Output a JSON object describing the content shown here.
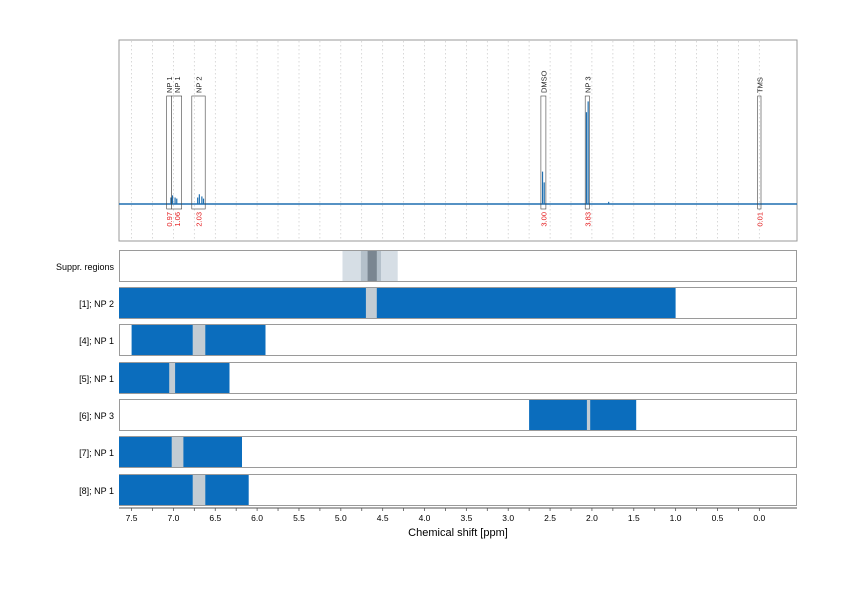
{
  "colors": {
    "spectrum": "#1f6fb0",
    "bar": "#0b6dbd",
    "gap": "#c3ccd3",
    "suppr_outer": "#d6dee5",
    "suppr_mid": "#b4c0ca",
    "suppr_inner": "#7a8691",
    "integral_text": "#e41a1c",
    "frame": "#9a9a9a",
    "grid": "#c8c8c8"
  },
  "chart_data": {
    "type": "spectrum",
    "xlabel": "Chemical shift [ppm]",
    "xlim": [
      7.65,
      -0.45
    ],
    "x_ticks": [
      7.5,
      7.0,
      6.5,
      6.0,
      5.5,
      5.0,
      4.5,
      4.0,
      3.5,
      3.0,
      2.5,
      2.0,
      1.5,
      1.0,
      0.5,
      0.0
    ],
    "x_tick_labels": [
      "7.5",
      "7.0",
      "6.5",
      "6.0",
      "5.5",
      "5.0",
      "4.5",
      "4.0",
      "3.5",
      "3.0",
      "2.5",
      "2.0",
      "1.5",
      "1.0",
      "0.5",
      "0.0"
    ],
    "grid": true,
    "peaks": [
      {
        "ppm": 7.03,
        "height": 0.06
      },
      {
        "ppm": 7.01,
        "height": 0.08
      },
      {
        "ppm": 6.98,
        "height": 0.06
      },
      {
        "ppm": 6.96,
        "height": 0.05
      },
      {
        "ppm": 6.71,
        "height": 0.06
      },
      {
        "ppm": 6.69,
        "height": 0.09
      },
      {
        "ppm": 6.66,
        "height": 0.07
      },
      {
        "ppm": 6.64,
        "height": 0.05
      },
      {
        "ppm": 2.59,
        "height": 0.3
      },
      {
        "ppm": 2.57,
        "height": 0.2
      },
      {
        "ppm": 2.065,
        "height": 0.85
      },
      {
        "ppm": 2.045,
        "height": 0.95
      },
      {
        "ppm": 1.8,
        "height": 0.02
      }
    ],
    "annotations": [
      {
        "label": "NP 1",
        "ppm_start": 7.08,
        "ppm_end": 7.02,
        "integral": "0.97"
      },
      {
        "label": "NP 1",
        "ppm_start": 7.02,
        "ppm_end": 6.9,
        "integral": "1.06"
      },
      {
        "label": "NP 2",
        "ppm_start": 6.78,
        "ppm_end": 6.62,
        "integral": "2.03"
      },
      {
        "label": "DMSO",
        "ppm_start": 2.61,
        "ppm_end": 2.55,
        "integral": "3.00"
      },
      {
        "label": "NP 3",
        "ppm_start": 2.08,
        "ppm_end": 2.03,
        "integral": "3.83"
      },
      {
        "label": "TMS",
        "ppm_start": 0.02,
        "ppm_end": -0.02,
        "integral": "0.01"
      }
    ],
    "suppression": {
      "label": "Suppr. regions",
      "outer": [
        4.98,
        4.32
      ],
      "mid": [
        4.76,
        4.52
      ],
      "inner": [
        4.68,
        4.57
      ]
    },
    "rows": [
      {
        "label": "[1]; NP 2",
        "range": [
          7.65,
          1.0
        ],
        "gap": [
          4.7,
          4.57
        ]
      },
      {
        "label": "[4]; NP 1",
        "range": [
          7.5,
          5.9
        ],
        "gap": [
          6.77,
          6.62
        ]
      },
      {
        "label": "[5]; NP 1",
        "range": [
          7.65,
          6.33
        ],
        "gap": [
          7.05,
          6.98
        ]
      },
      {
        "label": "[6]; NP 3",
        "range": [
          2.75,
          1.47
        ],
        "gap": [
          2.06,
          2.02
        ]
      },
      {
        "label": "[7]; NP 1",
        "range": [
          7.65,
          6.18
        ],
        "gap": [
          7.02,
          6.88
        ]
      },
      {
        "label": "[8]; NP 1",
        "range": [
          7.65,
          6.1
        ],
        "gap": [
          6.77,
          6.62
        ]
      }
    ]
  }
}
